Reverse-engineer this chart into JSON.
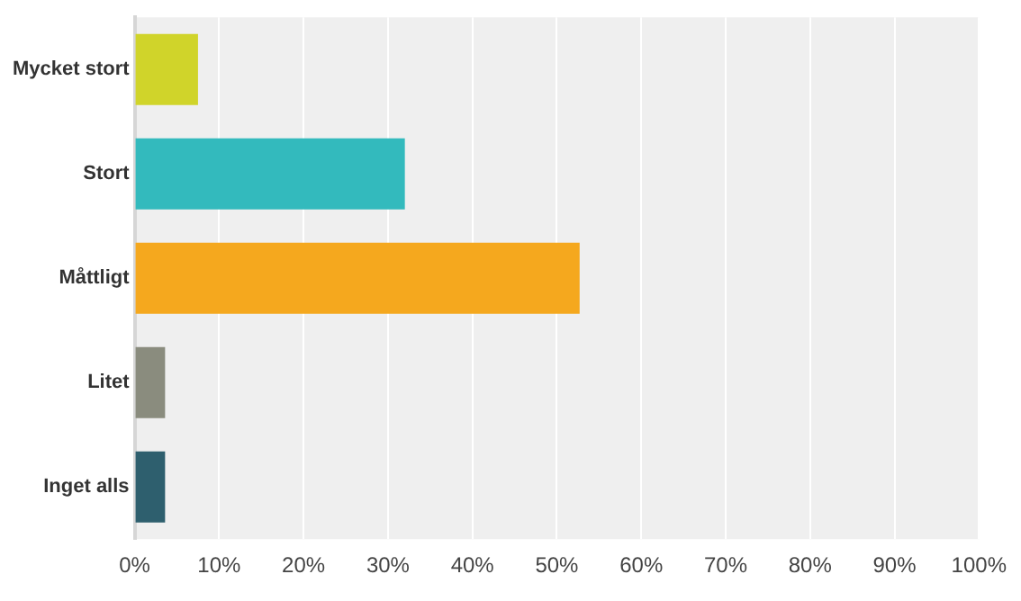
{
  "chart_data": {
    "type": "bar",
    "orientation": "horizontal",
    "categories": [
      "Mycket stort",
      "Stort",
      "Måttligt",
      "Litet",
      "Inget alls"
    ],
    "values": [
      7.5,
      32,
      52.7,
      3.6,
      3.6
    ],
    "colors": [
      "#d0d42a",
      "#33babd",
      "#f5a81e",
      "#8a8c7e",
      "#2e5f6e"
    ],
    "xlim": [
      0,
      100
    ],
    "xticks": [
      {
        "value": 0,
        "label": "0%"
      },
      {
        "value": 10,
        "label": "10%"
      },
      {
        "value": 20,
        "label": "20%"
      },
      {
        "value": 30,
        "label": "30%"
      },
      {
        "value": 40,
        "label": "40%"
      },
      {
        "value": 50,
        "label": "50%"
      },
      {
        "value": 60,
        "label": "60%"
      },
      {
        "value": 70,
        "label": "70%"
      },
      {
        "value": 80,
        "label": "80%"
      },
      {
        "value": 90,
        "label": "90%"
      },
      {
        "value": 100,
        "label": "100%"
      }
    ],
    "grid": "x",
    "legend": false
  }
}
